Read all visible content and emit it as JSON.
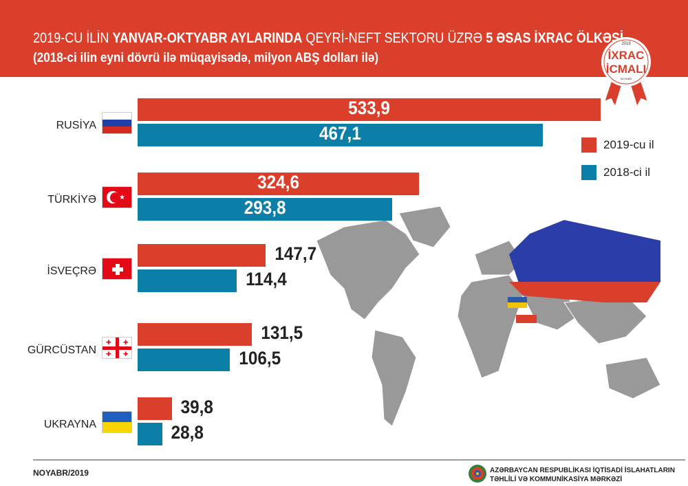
{
  "header": {
    "title_part1": "2019-CU İLİN ",
    "title_bold1": "YANVAR-OKTYABR AYLARINDA",
    "title_part2": "  QEYRİ-NEFT SEKTORU ÜZRƏ ",
    "title_bold2": "5 ƏSAS İXRAC ÖLKƏSİ",
    "subtitle": "(2018-ci ilin eyni dövrü ilə müqayisədə, milyon ABŞ dolları ilə)"
  },
  "badge": {
    "year": "2019",
    "line1": "İXRAC",
    "line2": "İCMALI",
    "month": "NOYABR"
  },
  "chart_data": {
    "type": "bar",
    "orientation": "horizontal",
    "categories": [
      "RUSİYA",
      "TÜRKİYƏ",
      "İSVEÇRƏ",
      "GÜRCÜSTAN",
      "UKRAYNA"
    ],
    "series": [
      {
        "name": "2019-cu il",
        "color": "#d93f2b",
        "values": [
          533.9,
          324.6,
          147.7,
          131.5,
          39.8
        ],
        "labels": [
          "533,9",
          "324,6",
          "147,7",
          "131,5",
          "39,8"
        ]
      },
      {
        "name": "2018-ci il",
        "color": "#0c7fa8",
        "values": [
          467.1,
          293.8,
          114.4,
          106.5,
          28.8
        ],
        "labels": [
          "467,1",
          "293,8",
          "114,4",
          "106,5",
          "28,8"
        ]
      }
    ],
    "legend": "right",
    "unit": "milyon ABŞ dolları"
  },
  "footer": {
    "date": "NOYABR/2019",
    "org_line1": "AZƏRBAYCAN RESPUBLİKASI İQTİSADİ İSLAHATLARIN",
    "org_line2": "TƏHLİLİ VƏ KOMMUNİKASİYA MƏRKƏZİ"
  }
}
